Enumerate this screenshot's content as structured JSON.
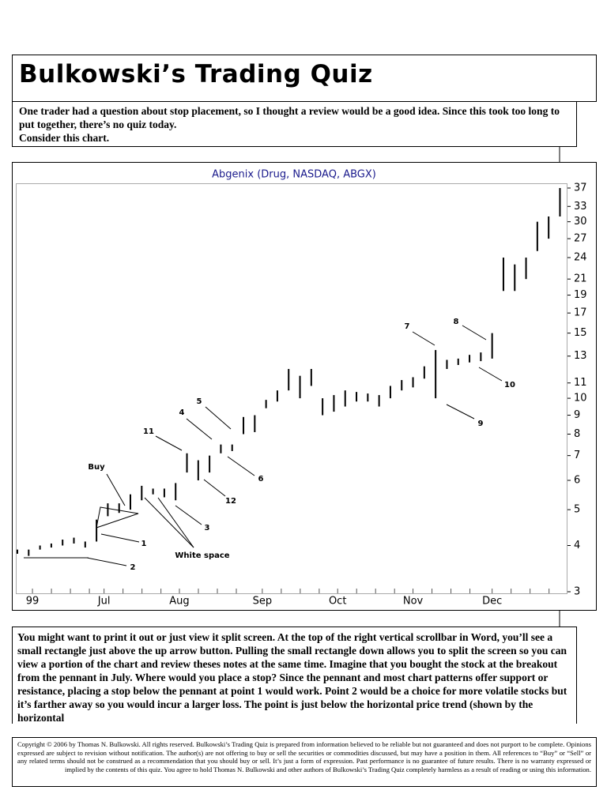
{
  "header": {
    "title": "Bulkowski’s Trading Quiz"
  },
  "intro": [
    "One trader had a question about stop placement, so I thought a review would be a good idea. Since this took too long to put together, there’s no quiz today.",
    "Consider this chart."
  ],
  "chart_data": {
    "type": "range-bar",
    "title": "Abgenix (Drug, NASDAQ, ABGX)",
    "x": [
      0,
      3,
      6,
      9,
      12,
      15,
      18,
      21,
      24,
      27,
      30,
      33,
      36,
      39,
      42,
      45,
      48,
      51,
      54,
      57,
      60,
      63,
      66,
      69,
      72,
      75,
      78,
      81,
      84,
      87,
      90,
      93,
      96,
      99,
      102,
      105,
      108,
      111,
      114,
      117,
      120,
      123,
      126,
      129,
      132,
      135,
      138,
      141,
      144
    ],
    "low": [
      3.8,
      3.75,
      3.9,
      3.95,
      4.0,
      4.05,
      3.95,
      4.1,
      4.8,
      4.9,
      5.0,
      5.3,
      5.5,
      5.4,
      5.3,
      6.3,
      6.0,
      6.3,
      7.1,
      7.2,
      8.0,
      8.1,
      9.4,
      9.8,
      10.5,
      10.0,
      10.8,
      9.0,
      9.2,
      9.5,
      9.8,
      9.8,
      9.5,
      10.0,
      10.5,
      10.7,
      11.3,
      10.0,
      12.0,
      12.3,
      12.5,
      12.6,
      12.8,
      19.5,
      19.5,
      21,
      25,
      27,
      31
    ],
    "high": [
      3.9,
      3.9,
      4.0,
      4.05,
      4.15,
      4.2,
      4.1,
      4.7,
      5.2,
      5.2,
      5.5,
      5.8,
      5.7,
      5.7,
      5.9,
      7.1,
      6.8,
      7.0,
      7.5,
      7.5,
      8.9,
      9.0,
      9.9,
      10.5,
      12.0,
      11.5,
      12.0,
      10.0,
      10.2,
      10.5,
      10.4,
      10.3,
      10.2,
      10.8,
      11.2,
      11.4,
      12.2,
      13.5,
      12.7,
      12.8,
      13.1,
      13.3,
      15.0,
      24,
      23,
      24,
      30,
      31,
      37
    ],
    "color": "#000000",
    "log_scale": true,
    "ylim": [
      3,
      37
    ],
    "yticks": [
      3,
      4,
      5,
      6,
      7,
      8,
      9,
      10,
      11,
      13,
      15,
      17,
      19,
      21,
      24,
      27,
      30,
      33,
      37
    ],
    "xlim": [
      0,
      146
    ],
    "xticks": [
      {
        "value": 4,
        "label": "99"
      },
      {
        "value": 23,
        "label": "Jul"
      },
      {
        "value": 43,
        "label": "Aug"
      },
      {
        "value": 65,
        "label": "Sep"
      },
      {
        "value": 85,
        "label": "Oct"
      },
      {
        "value": 105,
        "label": "Nov"
      },
      {
        "value": 126,
        "label": "Dec"
      }
    ],
    "annotations": [
      "Buy",
      "1",
      "2",
      "3",
      "4",
      "5",
      "6",
      "7",
      "8",
      "9",
      "10",
      "11",
      "12",
      "White space"
    ]
  },
  "body": "You might want to print it out or just view it split screen. At the top of the right vertical scrollbar in Word, you’ll see a small rectangle just above the up arrow button. Pulling the small rectangle down allows you to split the screen so you can view a portion of the chart and review theses notes at the same time. Imagine that you bought the stock at the breakout from the pennant in July. Where would you place a stop? Since the pennant and most chart patterns offer support or resistance, placing a stop below the pennant at point 1 would work. Point 2 would be a choice for more volatile stocks but it’s farther away so you would incur a larger loss. The point is just below the horizontal price trend (shown by the horizontal",
  "footer": "Copyright © 2006 by Thomas N. Bulkowski. All rights reserved. Bulkowski’s Trading Quiz is prepared from information believed to be reliable but not guaranteed and does not purport to be complete. Opinions expressed are subject to revision without notification. The author(s) are not offering to buy or sell the securities or commodities discussed, but may have a position in them. All references to “Buy” or “Sell” or any related terms should not be construed as a recommendation that you should buy or sell. It’s just a form of expression. Past performance is no guarantee of future results. There is no warranty expressed or implied by the contents of this quiz. You agree to hold Thomas N. Bulkowski and other authors of Bulkowski’s Trading Quiz completely harmless as a result of reading or using this information."
}
